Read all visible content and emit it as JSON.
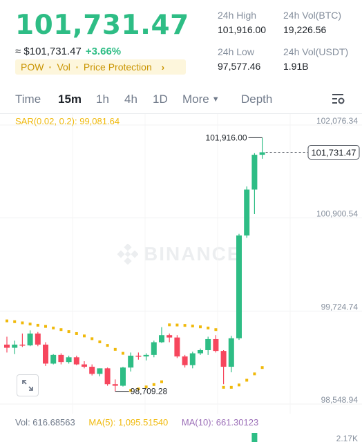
{
  "header": {
    "last_price": "101,731.47",
    "fiat_price": "≈ $101,731.47",
    "change_pct": "+3.66%",
    "tags": [
      "POW",
      "Vol",
      "Price Protection"
    ]
  },
  "stats": {
    "high_label": "24h High",
    "high_value": "101,916.00",
    "low_label": "24h Low",
    "low_value": "97,577.46",
    "volbtc_label": "24h Vol(BTC)",
    "volbtc_value": "19,226.56",
    "volusdt_label": "24h Vol(USDT)",
    "volusdt_value": "1.91B"
  },
  "tabs": {
    "time": "Time",
    "m15": "15m",
    "h1": "1h",
    "h4": "4h",
    "d1": "1D",
    "more": "More",
    "depth": "Depth",
    "active": "15m"
  },
  "chart": {
    "sar_label": "SAR(0.02, 0.2): 99,081.64",
    "watermark": "BINANCE",
    "axis_labels": [
      "102,076.34",
      "100,900.54",
      "99,724.74",
      "98,548.94",
      "2.17K"
    ],
    "current_price_tag": "101,731.47",
    "high_marker": "101,916.00",
    "low_marker": "98,709.28"
  },
  "indicators": {
    "vol": "Vol: 616.68563",
    "ma5": "MA(5): 1,095.51540",
    "ma10": "MA(10): 661.30123"
  },
  "colors": {
    "up": "#2ebd85",
    "down": "#f6465d",
    "sar": "#f0b90b",
    "ma5": "#f0b90b",
    "ma10": "#9c6fb8",
    "muted": "#848e9c"
  },
  "chart_data": {
    "type": "candlestick",
    "interval": "15m",
    "axis_ticks": [
      102076.34,
      100900.54,
      99724.74,
      98548.94
    ],
    "candles": [
      {
        "o": 99300,
        "h": 99400,
        "l": 99200,
        "c": 99260
      },
      {
        "o": 99260,
        "h": 99350,
        "l": 99180,
        "c": 99300
      },
      {
        "o": 99300,
        "h": 99440,
        "l": 99270,
        "c": 99290
      },
      {
        "o": 99290,
        "h": 99480,
        "l": 99280,
        "c": 99440
      },
      {
        "o": 99440,
        "h": 99460,
        "l": 99280,
        "c": 99300
      },
      {
        "o": 99300,
        "h": 99330,
        "l": 99030,
        "c": 99060
      },
      {
        "o": 99060,
        "h": 99180,
        "l": 99050,
        "c": 99170
      },
      {
        "o": 99170,
        "h": 99190,
        "l": 99050,
        "c": 99080
      },
      {
        "o": 99080,
        "h": 99160,
        "l": 99060,
        "c": 99140
      },
      {
        "o": 99140,
        "h": 99160,
        "l": 99040,
        "c": 99050
      },
      {
        "o": 99050,
        "h": 99090,
        "l": 99000,
        "c": 99020
      },
      {
        "o": 99020,
        "h": 99050,
        "l": 98910,
        "c": 98930
      },
      {
        "o": 98930,
        "h": 99000,
        "l": 98900,
        "c": 99000
      },
      {
        "o": 99000,
        "h": 99010,
        "l": 98780,
        "c": 98800
      },
      {
        "o": 98800,
        "h": 98860,
        "l": 98709.28,
        "c": 98780
      },
      {
        "o": 98780,
        "h": 99020,
        "l": 98770,
        "c": 99010
      },
      {
        "o": 99010,
        "h": 99200,
        "l": 98960,
        "c": 99160
      },
      {
        "o": 99160,
        "h": 99200,
        "l": 99110,
        "c": 99150
      },
      {
        "o": 99150,
        "h": 99190,
        "l": 99100,
        "c": 99170
      },
      {
        "o": 99170,
        "h": 99350,
        "l": 99140,
        "c": 99330
      },
      {
        "o": 99330,
        "h": 99520,
        "l": 99320,
        "c": 99420
      },
      {
        "o": 99420,
        "h": 99440,
        "l": 99330,
        "c": 99390
      },
      {
        "o": 99390,
        "h": 99420,
        "l": 99130,
        "c": 99150
      },
      {
        "o": 99150,
        "h": 99170,
        "l": 99010,
        "c": 99040
      },
      {
        "o": 99040,
        "h": 99210,
        "l": 99000,
        "c": 99190
      },
      {
        "o": 99190,
        "h": 99250,
        "l": 99170,
        "c": 99230
      },
      {
        "o": 99230,
        "h": 99400,
        "l": 99170,
        "c": 99370
      },
      {
        "o": 99370,
        "h": 99420,
        "l": 99200,
        "c": 99220
      },
      {
        "o": 99220,
        "h": 99230,
        "l": 98800,
        "c": 99020
      },
      {
        "o": 99020,
        "h": 99410,
        "l": 98950,
        "c": 99380
      },
      {
        "o": 99380,
        "h": 100700,
        "l": 99360,
        "c": 100680
      },
      {
        "o": 100680,
        "h": 101300,
        "l": 100650,
        "c": 101260
      },
      {
        "o": 101260,
        "h": 101720,
        "l": 100950,
        "c": 101700
      },
      {
        "o": 101700,
        "h": 101916.0,
        "l": 101650,
        "c": 101731.47
      }
    ],
    "sar_points": [
      99600,
      99590,
      99575,
      99560,
      99545,
      99530,
      99510,
      99490,
      99465,
      99440,
      99410,
      99375,
      99335,
      99290,
      99240,
      99190,
      98720,
      98740,
      98765,
      98795,
      98830,
      99550,
      99548,
      99543,
      99535,
      99525,
      99510,
      99490,
      98760,
      98760,
      98790,
      98850,
      98930,
      99010
    ],
    "volume_bars": [
      {
        "index": 32,
        "value": 616.68563
      }
    ]
  }
}
